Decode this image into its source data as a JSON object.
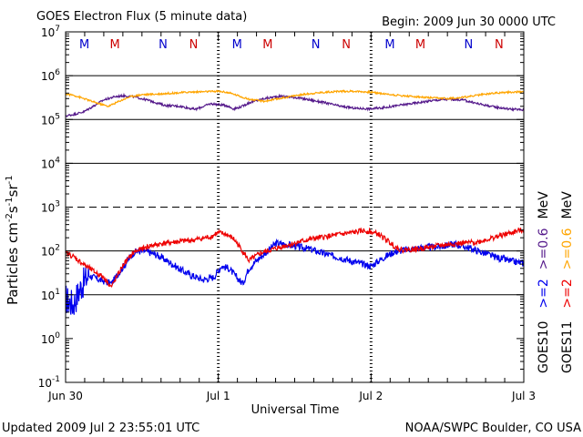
{
  "chart_data": {
    "type": "line",
    "title": "GOES Electron Flux (5 minute data)",
    "begin": "Begin: 2009 Jun 30 0000 UTC",
    "xlabel": "Universal Time",
    "ylabel": "Particles cm",
    "ylabel_parts": {
      "cm_exp": "-2",
      "s": "s",
      "s_exp": "-1",
      "sr": "sr",
      "sr_exp": "-1"
    },
    "yscale": "log",
    "ylim_exp": [
      -1,
      7
    ],
    "y_ticks": [
      {
        "exp": "-1"
      },
      {
        "exp": "0"
      },
      {
        "exp": "1"
      },
      {
        "exp": "2"
      },
      {
        "exp": "3"
      },
      {
        "exp": "4"
      },
      {
        "exp": "5"
      },
      {
        "exp": "6"
      },
      {
        "exp": "7"
      }
    ],
    "xlim_days": [
      0,
      3
    ],
    "x_ticks": [
      {
        "day": 0,
        "label": "Jun 30"
      },
      {
        "day": 1,
        "label": "Jul 1"
      },
      {
        "day": 2,
        "label": "Jul 2"
      },
      {
        "day": 3,
        "label": "Jul 3"
      }
    ],
    "hlines": [
      {
        "exp": 1,
        "style": "solid"
      },
      {
        "exp": 2,
        "style": "solid"
      },
      {
        "exp": 3,
        "style": "dashed"
      },
      {
        "exp": 4,
        "style": "solid"
      },
      {
        "exp": 5,
        "style": "solid"
      },
      {
        "exp": 6,
        "style": "solid"
      }
    ],
    "markers": [
      {
        "day": 0.123,
        "label": "M",
        "color": "#0000cc"
      },
      {
        "day": 0.323,
        "label": "M",
        "color": "#cc0000"
      },
      {
        "day": 0.638,
        "label": "N",
        "color": "#0000cc"
      },
      {
        "day": 0.838,
        "label": "N",
        "color": "#cc0000"
      },
      {
        "day": 1.123,
        "label": "M",
        "color": "#0000cc"
      },
      {
        "day": 1.323,
        "label": "M",
        "color": "#cc0000"
      },
      {
        "day": 1.638,
        "label": "N",
        "color": "#0000cc"
      },
      {
        "day": 1.838,
        "label": "N",
        "color": "#cc0000"
      },
      {
        "day": 2.123,
        "label": "M",
        "color": "#0000cc"
      },
      {
        "day": 2.323,
        "label": "M",
        "color": "#cc0000"
      },
      {
        "day": 2.638,
        "label": "N",
        "color": "#0000cc"
      },
      {
        "day": 2.838,
        "label": "N",
        "color": "#cc0000"
      }
    ],
    "series": [
      {
        "name": "GOES10 >=2 MeV",
        "color": "#0000ee",
        "noise": 0.08,
        "x": [
          0,
          0.02,
          0.05,
          0.1,
          0.15,
          0.22,
          0.3,
          0.38,
          0.45,
          0.52,
          0.6,
          0.68,
          0.75,
          0.82,
          0.9,
          0.97,
          1.02,
          1.07,
          1.12,
          1.16,
          1.2,
          1.25,
          1.3,
          1.38,
          1.45,
          1.52,
          1.6,
          1.7,
          1.8,
          1.9,
          2.0,
          2.08,
          2.15,
          2.25,
          2.35,
          2.45,
          2.55,
          2.6,
          2.7,
          2.8,
          2.9,
          3.0
        ],
        "y": [
          8,
          7,
          6,
          15,
          28,
          22,
          18,
          45,
          95,
          100,
          80,
          55,
          38,
          28,
          22,
          25,
          45,
          40,
          25,
          18,
          40,
          60,
          85,
          150,
          140,
          125,
          110,
          85,
          70,
          55,
          45,
          70,
          95,
          110,
          120,
          125,
          145,
          130,
          100,
          75,
          60,
          52
        ]
      },
      {
        "name": "GOES10 >=0.6 MeV",
        "color": "#551a8b",
        "noise": 0.025,
        "x": [
          0,
          0.05,
          0.12,
          0.18,
          0.25,
          0.32,
          0.38,
          0.45,
          0.55,
          0.65,
          0.75,
          0.85,
          0.95,
          1.05,
          1.1,
          1.15,
          1.2,
          1.3,
          1.4,
          1.5,
          1.6,
          1.7,
          1.8,
          1.9,
          2.0,
          2.1,
          2.2,
          2.3,
          2.4,
          2.5,
          2.6,
          2.7,
          2.8,
          2.9,
          3.0
        ],
        "y": [
          120000,
          130000,
          150000,
          200000,
          280000,
          330000,
          350000,
          330000,
          270000,
          210000,
          200000,
          170000,
          230000,
          210000,
          175000,
          195000,
          240000,
          300000,
          340000,
          320000,
          280000,
          240000,
          200000,
          180000,
          175000,
          190000,
          215000,
          240000,
          270000,
          290000,
          280000,
          230000,
          195000,
          175000,
          165000
        ]
      },
      {
        "name": "GOES11 >=2 MeV",
        "color": "#ee0000",
        "noise": 0.06,
        "x": [
          0,
          0.05,
          0.1,
          0.18,
          0.25,
          0.3,
          0.38,
          0.45,
          0.55,
          0.65,
          0.75,
          0.85,
          0.95,
          1.0,
          1.05,
          1.1,
          1.15,
          1.2,
          1.28,
          1.38,
          1.5,
          1.6,
          1.7,
          1.8,
          1.9,
          1.95,
          2.0,
          2.05,
          2.1,
          2.15,
          2.2,
          2.3,
          2.4,
          2.5,
          2.6,
          2.7,
          2.8,
          2.9,
          3.0
        ],
        "y": [
          90,
          75,
          55,
          35,
          25,
          15,
          50,
          95,
          130,
          150,
          165,
          180,
          210,
          260,
          240,
          190,
          110,
          60,
          90,
          115,
          150,
          185,
          210,
          240,
          270,
          290,
          270,
          240,
          180,
          130,
          105,
          110,
          125,
          140,
          150,
          160,
          200,
          250,
          310
        ]
      },
      {
        "name": "GOES11 >=0.6 MeV",
        "color": "#ffa500",
        "noise": 0.02,
        "x": [
          0,
          0.05,
          0.12,
          0.2,
          0.28,
          0.35,
          0.42,
          0.5,
          0.6,
          0.7,
          0.8,
          0.9,
          1.0,
          1.05,
          1.1,
          1.15,
          1.2,
          1.3,
          1.4,
          1.5,
          1.6,
          1.7,
          1.8,
          1.9,
          2.0,
          2.1,
          2.2,
          2.3,
          2.4,
          2.5,
          2.6,
          2.7,
          2.8,
          2.9,
          3.0
        ],
        "y": [
          380000,
          360000,
          300000,
          240000,
          200000,
          260000,
          330000,
          370000,
          380000,
          400000,
          420000,
          430000,
          440000,
          420000,
          380000,
          330000,
          290000,
          260000,
          300000,
          350000,
          390000,
          420000,
          440000,
          440000,
          420000,
          380000,
          350000,
          330000,
          310000,
          300000,
          320000,
          360000,
          400000,
          420000,
          430000
        ]
      }
    ],
    "right_labels": [
      {
        "text": "GOES10",
        "color": "#000000"
      },
      {
        "text": ">=2",
        "color": "#0000ee"
      },
      {
        "text": ">=0.6",
        "color": "#551a8b"
      },
      {
        "text": "MeV",
        "color": "#000000"
      },
      {
        "text": "GOES11",
        "color": "#000000"
      },
      {
        "text": ">=2",
        "color": "#ee0000"
      },
      {
        "text": ">=0.6",
        "color": "#ffa500"
      },
      {
        "text": "MeV",
        "color": "#000000"
      }
    ]
  },
  "footer": {
    "updated": "Updated 2009 Jul  2 23:55:01 UTC",
    "source": "NOAA/SWPC Boulder, CO USA"
  }
}
